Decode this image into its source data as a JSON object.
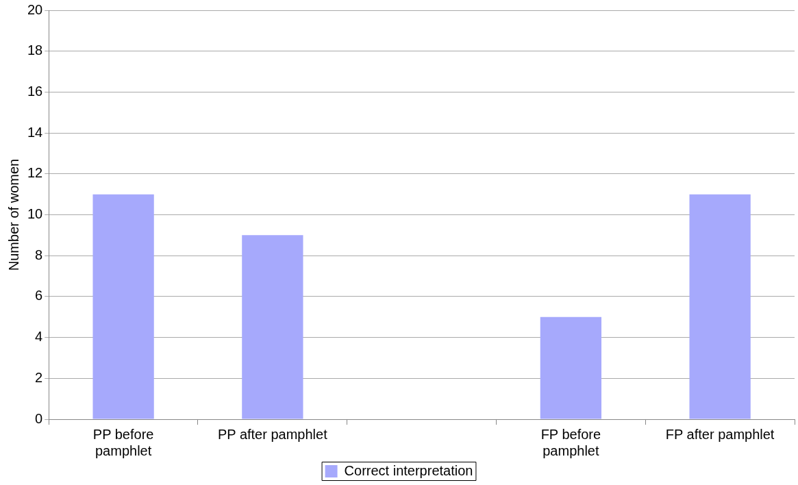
{
  "chart_data": {
    "type": "bar",
    "ylabel": "Number of women",
    "categories": [
      "PP before pamphlet",
      "PP after pamphlet",
      null,
      "FP before pamphlet",
      "FP after pamphlet"
    ],
    "series": [
      {
        "name": "Correct interpretation",
        "color": "#a6a9fc",
        "values": [
          11,
          9,
          null,
          5,
          11
        ]
      }
    ],
    "ylim": [
      0,
      20
    ],
    "yticks": [
      0,
      2,
      4,
      6,
      8,
      10,
      12,
      14,
      16,
      18,
      20
    ],
    "grid": "y",
    "legend": "bottom"
  }
}
